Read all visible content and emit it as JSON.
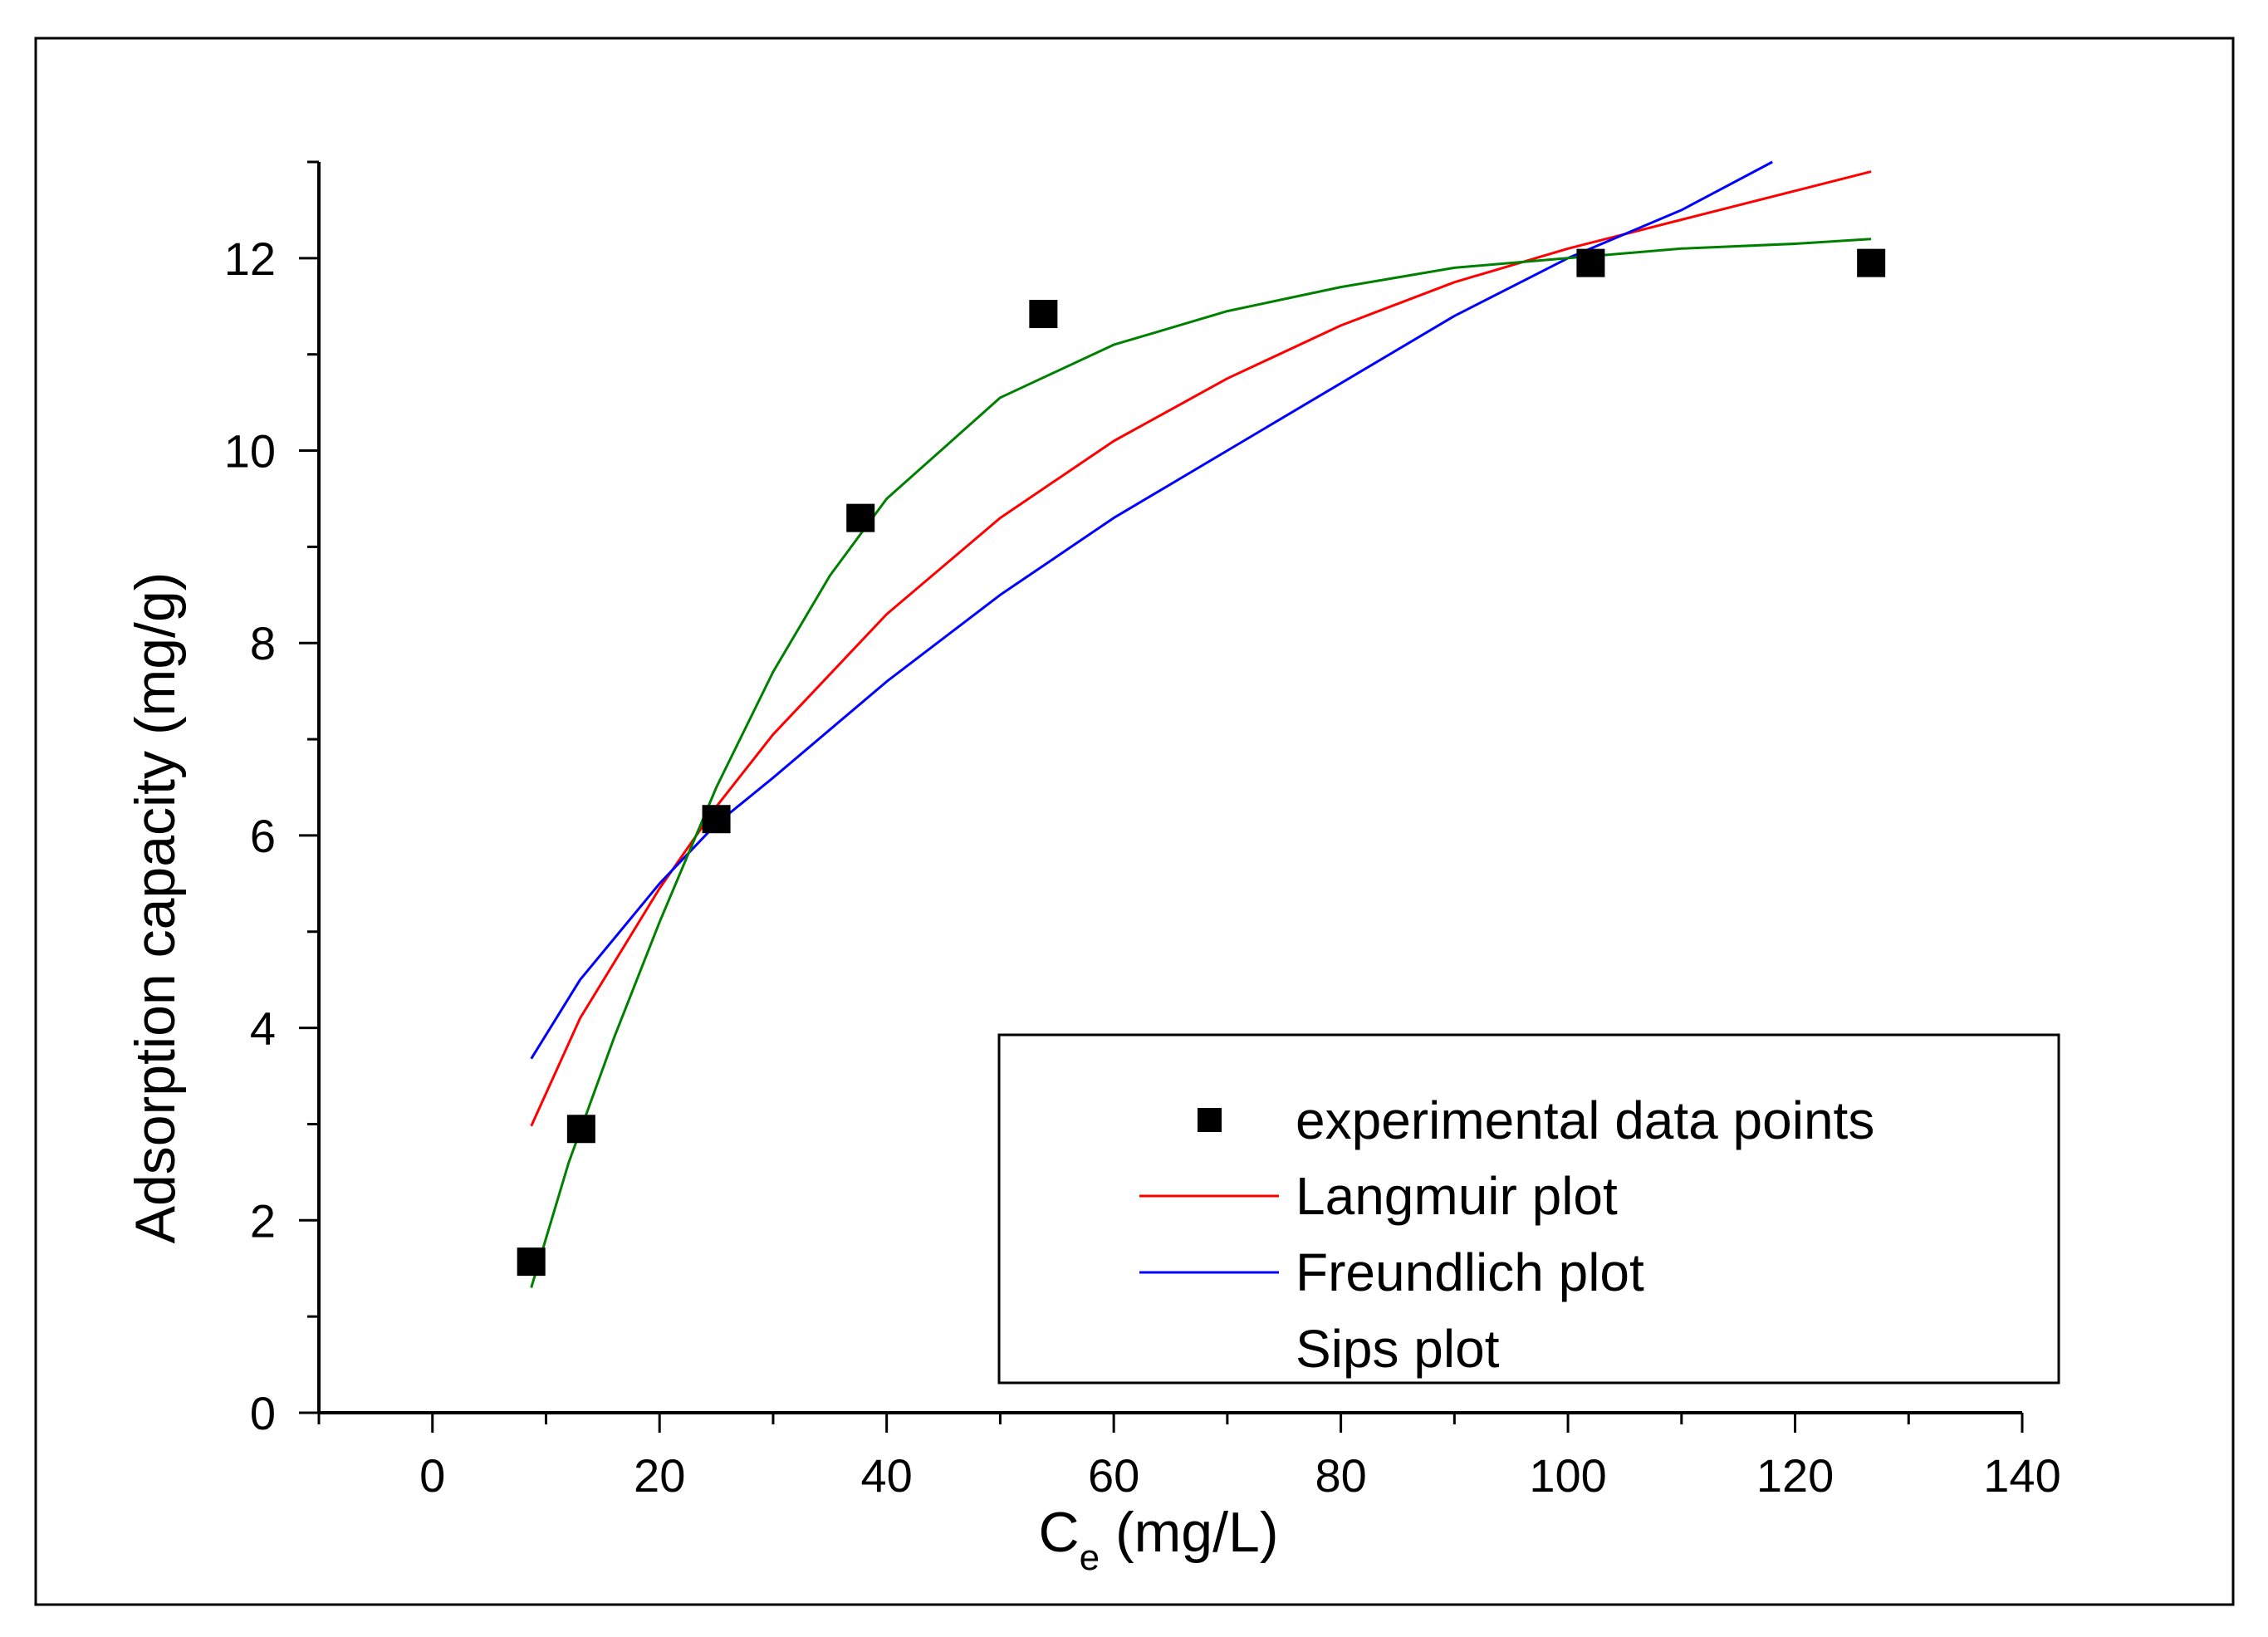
{
  "chart_data": {
    "type": "scatter",
    "xlabel_main": "C",
    "xlabel_sub": "e",
    "xlabel_unit": " (mg/L)",
    "ylabel": "Adsorption capacity (mg/g)",
    "xlim": [
      -10,
      140
    ],
    "ylim": [
      0,
      13
    ],
    "x_ticks": [
      0,
      20,
      40,
      60,
      80,
      100,
      120,
      140
    ],
    "y_ticks": [
      0,
      2,
      4,
      6,
      8,
      10,
      12
    ],
    "x_minor_step": 10,
    "y_minor_step": 1,
    "grid": false,
    "legend_position": "bottom-right",
    "series": [
      {
        "name": "experimental data points",
        "kind": "points",
        "marker": "square",
        "color": "#000000",
        "x": [
          8.7,
          13.1,
          25,
          37.7,
          53.8,
          102,
          126.7
        ],
        "y": [
          1.57,
          2.95,
          6.17,
          9.3,
          11.42,
          11.95,
          11.95
        ]
      },
      {
        "name": "Langmuir plot",
        "kind": "line",
        "color": "#ff0000",
        "x": [
          8.7,
          13,
          20,
          25,
          30,
          40,
          50,
          60,
          70,
          80,
          90,
          100,
          110,
          120,
          126.7
        ],
        "y": [
          2.98,
          4.1,
          5.45,
          6.3,
          7.05,
          8.3,
          9.3,
          10.1,
          10.75,
          11.3,
          11.75,
          12.1,
          12.4,
          12.7,
          12.9
        ]
      },
      {
        "name": "Freundlich plot",
        "kind": "line",
        "color": "#0000ff",
        "x": [
          8.7,
          13,
          20,
          25,
          30,
          40,
          50,
          60,
          70,
          80,
          90,
          100,
          110,
          118
        ],
        "y": [
          3.68,
          4.5,
          5.5,
          6.12,
          6.6,
          7.6,
          8.5,
          9.3,
          10.0,
          10.7,
          11.4,
          12.0,
          12.5,
          13.0
        ]
      },
      {
        "name": "Sips plot",
        "kind": "line",
        "color": "#008000",
        "x": [
          8.7,
          12,
          16,
          20,
          25,
          30,
          35,
          40,
          50,
          60,
          70,
          80,
          90,
          100,
          110,
          120,
          126.7
        ],
        "y": [
          1.3,
          2.6,
          3.9,
          5.1,
          6.5,
          7.7,
          8.7,
          9.5,
          10.55,
          11.1,
          11.45,
          11.7,
          11.9,
          12.0,
          12.1,
          12.15,
          12.2
        ]
      }
    ]
  }
}
